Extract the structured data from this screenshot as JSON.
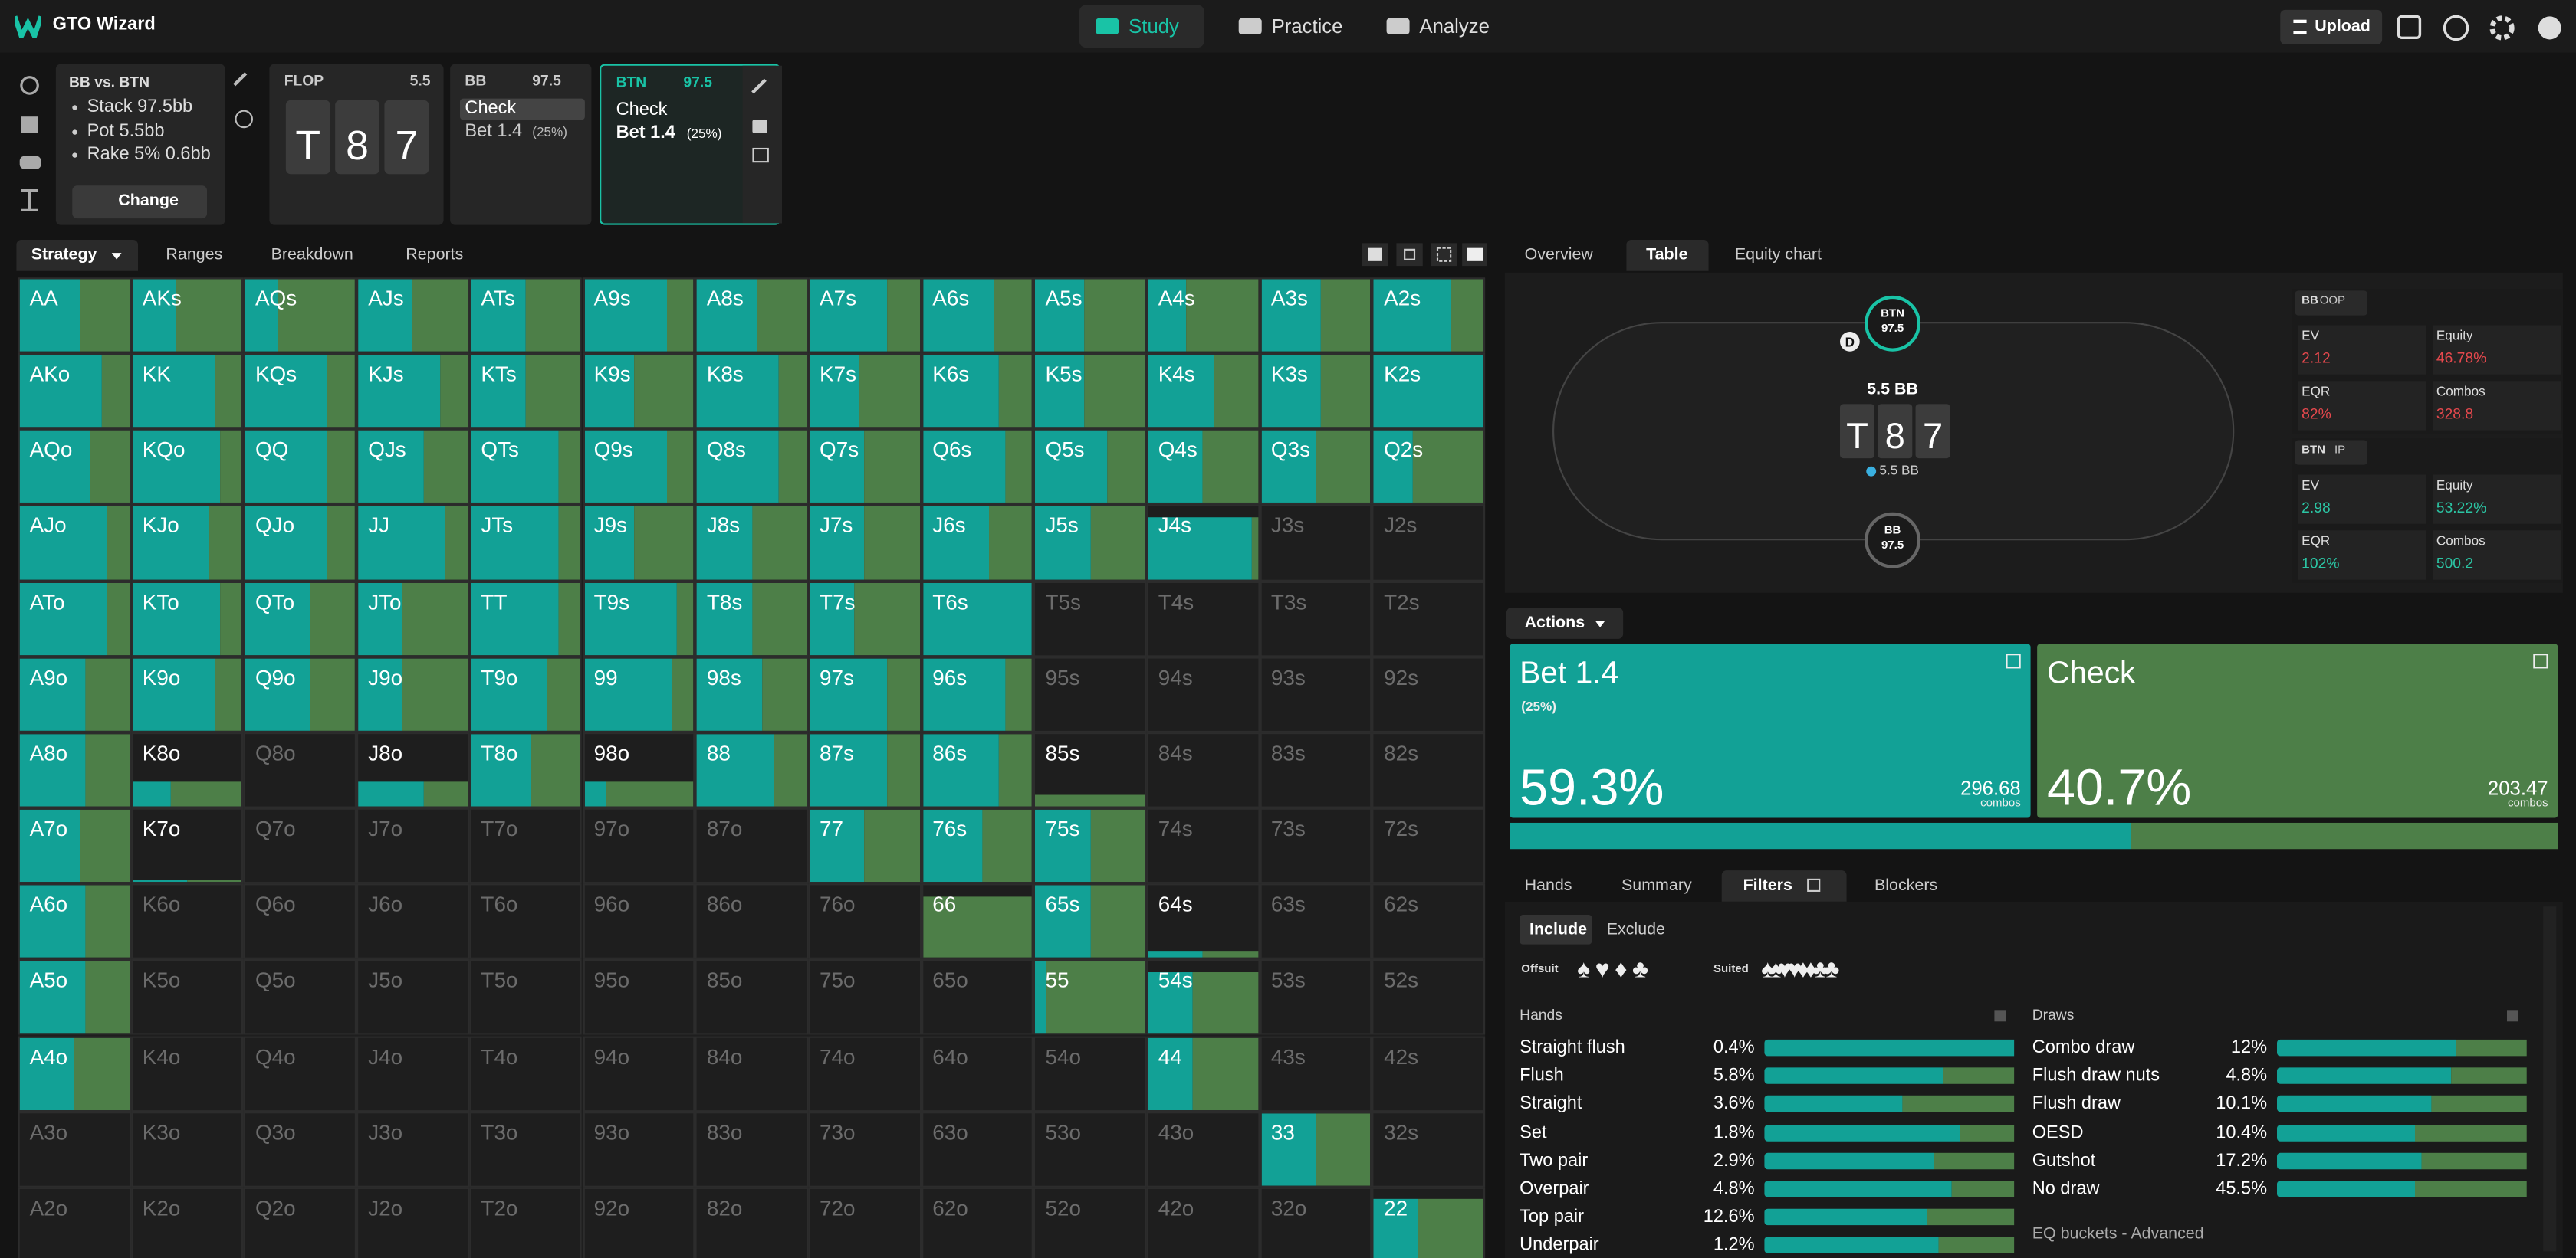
{
  "nav": {
    "brand": "GTO Wizard",
    "tabs": [
      "Study",
      "Practice",
      "Analyze"
    ],
    "upload": "Upload"
  },
  "spot": {
    "matchup": "BB vs. BTN",
    "lines": [
      "Stack 97.5bb",
      "Pot 5.5bb",
      "Rake 5% 0.6bb"
    ],
    "change": "Change"
  },
  "flop": {
    "label": "FLOP",
    "pot": "5.5",
    "cards": [
      "T",
      "8",
      "7"
    ]
  },
  "bb_node": {
    "player": "BB",
    "stack": "97.5",
    "actions": [
      "Check",
      "Bet 1.4"
    ],
    "bet_size": "(25%)"
  },
  "btn_node": {
    "player": "BTN",
    "stack": "97.5",
    "actions": [
      "Check",
      "Bet 1.4"
    ],
    "bet_size": "(25%)"
  },
  "left_tabs": [
    "Strategy",
    "Ranges",
    "Breakdown",
    "Reports"
  ],
  "grid": {
    "labels": [
      [
        "AA",
        "AKs",
        "AQs",
        "AJs",
        "ATs",
        "A9s",
        "A8s",
        "A7s",
        "A6s",
        "A5s",
        "A4s",
        "A3s",
        "A2s"
      ],
      [
        "AKo",
        "KK",
        "KQs",
        "KJs",
        "KTs",
        "K9s",
        "K8s",
        "K7s",
        "K6s",
        "K5s",
        "K4s",
        "K3s",
        "K2s"
      ],
      [
        "AQo",
        "KQo",
        "QQ",
        "QJs",
        "QTs",
        "Q9s",
        "Q8s",
        "Q7s",
        "Q6s",
        "Q5s",
        "Q4s",
        "Q3s",
        "Q2s"
      ],
      [
        "AJo",
        "KJo",
        "QJo",
        "JJ",
        "JTs",
        "J9s",
        "J8s",
        "J7s",
        "J6s",
        "J5s",
        "J4s",
        "J3s",
        "J2s"
      ],
      [
        "ATo",
        "KTo",
        "QTo",
        "JTo",
        "TT",
        "T9s",
        "T8s",
        "T7s",
        "T6s",
        "T5s",
        "T4s",
        "T3s",
        "T2s"
      ],
      [
        "A9o",
        "K9o",
        "Q9o",
        "J9o",
        "T9o",
        "99",
        "98s",
        "97s",
        "96s",
        "95s",
        "94s",
        "93s",
        "92s"
      ],
      [
        "A8o",
        "K8o",
        "Q8o",
        "J8o",
        "T8o",
        "98o",
        "88",
        "87s",
        "86s",
        "85s",
        "84s",
        "83s",
        "82s"
      ],
      [
        "A7o",
        "K7o",
        "Q7o",
        "J7o",
        "T7o",
        "97o",
        "87o",
        "77",
        "76s",
        "75s",
        "74s",
        "73s",
        "72s"
      ],
      [
        "A6o",
        "K6o",
        "Q6o",
        "J6o",
        "T6o",
        "96o",
        "86o",
        "76o",
        "66",
        "65s",
        "64s",
        "63s",
        "62s"
      ],
      [
        "A5o",
        "K5o",
        "Q5o",
        "J5o",
        "T5o",
        "95o",
        "85o",
        "75o",
        "65o",
        "55",
        "54s",
        "53s",
        "52s"
      ],
      [
        "A4o",
        "K4o",
        "Q4o",
        "J4o",
        "T4o",
        "94o",
        "84o",
        "74o",
        "64o",
        "54o",
        "44",
        "43s",
        "42s"
      ],
      [
        "A3o",
        "K3o",
        "Q3o",
        "J3o",
        "T3o",
        "93o",
        "83o",
        "73o",
        "63o",
        "53o",
        "43o",
        "33",
        "32s"
      ],
      [
        "A2o",
        "K2o",
        "Q2o",
        "J2o",
        "T2o",
        "92o",
        "82o",
        "72o",
        "62o",
        "52o",
        "42o",
        "32o",
        "22"
      ]
    ],
    "bet": [
      [
        55,
        40,
        30,
        50,
        50,
        75,
        55,
        70,
        65,
        45,
        35,
        55,
        70
      ],
      [
        75,
        75,
        75,
        75,
        50,
        45,
        75,
        45,
        70,
        45,
        60,
        55,
        100
      ],
      [
        65,
        80,
        75,
        60,
        80,
        75,
        75,
        50,
        75,
        65,
        50,
        50,
        35
      ],
      [
        80,
        70,
        75,
        80,
        80,
        45,
        50,
        50,
        60,
        50,
        95,
        null,
        null
      ],
      [
        80,
        80,
        60,
        40,
        80,
        85,
        50,
        40,
        100,
        null,
        null,
        null,
        null
      ],
      [
        60,
        75,
        60,
        40,
        70,
        80,
        60,
        70,
        75,
        null,
        null,
        null,
        null
      ],
      [
        60,
        35,
        null,
        60,
        55,
        20,
        70,
        70,
        70,
        0,
        null,
        null,
        null
      ],
      [
        55,
        50,
        null,
        null,
        null,
        null,
        null,
        50,
        55,
        50,
        null,
        null,
        null
      ],
      [
        60,
        null,
        null,
        null,
        null,
        null,
        null,
        null,
        0,
        50,
        50,
        null,
        null
      ],
      [
        60,
        null,
        null,
        null,
        null,
        null,
        null,
        null,
        null,
        10,
        40,
        null,
        null
      ],
      [
        50,
        null,
        null,
        null,
        null,
        null,
        null,
        null,
        null,
        null,
        40,
        null,
        null
      ],
      [
        null,
        null,
        null,
        null,
        null,
        null,
        null,
        null,
        null,
        null,
        null,
        50,
        null
      ],
      [
        null,
        null,
        null,
        null,
        null,
        null,
        null,
        null,
        null,
        null,
        null,
        null,
        40
      ]
    ],
    "weight": [
      [
        100,
        100,
        100,
        100,
        100,
        100,
        100,
        100,
        100,
        100,
        100,
        100,
        100
      ],
      [
        100,
        100,
        100,
        100,
        100,
        100,
        100,
        100,
        100,
        100,
        100,
        100,
        100
      ],
      [
        100,
        100,
        100,
        100,
        100,
        100,
        100,
        100,
        100,
        100,
        100,
        100,
        100
      ],
      [
        100,
        100,
        100,
        100,
        100,
        100,
        100,
        100,
        100,
        100,
        85,
        null,
        null
      ],
      [
        100,
        100,
        100,
        100,
        100,
        100,
        100,
        100,
        100,
        null,
        null,
        null,
        null
      ],
      [
        100,
        100,
        100,
        100,
        100,
        100,
        100,
        100,
        100,
        null,
        null,
        null,
        null
      ],
      [
        100,
        35,
        null,
        35,
        100,
        35,
        100,
        100,
        100,
        15,
        null,
        null,
        null
      ],
      [
        100,
        2,
        null,
        null,
        null,
        null,
        null,
        100,
        100,
        100,
        null,
        null,
        null
      ],
      [
        100,
        null,
        null,
        null,
        null,
        null,
        null,
        null,
        85,
        100,
        10,
        null,
        null
      ],
      [
        100,
        null,
        null,
        null,
        null,
        null,
        null,
        null,
        null,
        100,
        85,
        null,
        null
      ],
      [
        100,
        null,
        null,
        null,
        null,
        null,
        null,
        null,
        null,
        null,
        100,
        null,
        null
      ],
      [
        null,
        null,
        null,
        null,
        null,
        null,
        null,
        null,
        null,
        null,
        null,
        100,
        null
      ],
      [
        null,
        null,
        null,
        null,
        null,
        null,
        null,
        null,
        null,
        null,
        null,
        null,
        85
      ]
    ]
  },
  "right_tabs": [
    "Overview",
    "Table",
    "Equity chart"
  ],
  "table": {
    "btn_seat": {
      "name": "BTN",
      "stack": "97.5"
    },
    "dealer": "D",
    "pot": "5.5 BB",
    "board": [
      "T",
      "8",
      "7"
    ],
    "chips": "5.5 BB",
    "bb_seat": {
      "name": "BB",
      "stack": "97.5"
    }
  },
  "stats": {
    "labels": [
      "EV",
      "Equity",
      "EQR",
      "Combos"
    ],
    "players": [
      {
        "player": "BB",
        "pos": "OOP",
        "values": [
          "2.12",
          "46.78%",
          "82%",
          "328.8"
        ]
      },
      {
        "player": "BTN",
        "pos": "IP",
        "values": [
          "2.98",
          "53.22%",
          "102%",
          "500.2"
        ]
      }
    ]
  },
  "actions": {
    "title": "Actions",
    "cards": [
      {
        "name": "Bet 1.4",
        "size": "(25%)",
        "freq": {
          "value": 59.3,
          "label": "59.3%"
        },
        "combos": "296.68",
        "unit": "combos",
        "color": "#12a196"
      },
      {
        "name": "Check",
        "freq": {
          "value": 40.7,
          "label": "40.7%"
        },
        "combos": "203.47",
        "unit": "combos",
        "color": "#4d7f48"
      }
    ]
  },
  "bottom_tabs": [
    "Hands",
    "Summary",
    "Filters",
    "Blockers"
  ],
  "filters": {
    "include": "Include",
    "exclude": "Exclude",
    "offsuit": "Offsuit",
    "offsuit_suits": "♠♥♦♣",
    "suited": "Suited",
    "suited_suits": "♠♠♥♥♦♦♣♣",
    "hands_title": "Hands",
    "hands": [
      {
        "name": "Straight flush",
        "pct": "0.4%",
        "bet": 100
      },
      {
        "name": "Flush",
        "pct": "5.8%",
        "bet": 72
      },
      {
        "name": "Straight",
        "pct": "3.6%",
        "bet": 55
      },
      {
        "name": "Set",
        "pct": "1.8%",
        "bet": 78
      },
      {
        "name": "Two pair",
        "pct": "2.9%",
        "bet": 68
      },
      {
        "name": "Overpair",
        "pct": "4.8%",
        "bet": 75
      },
      {
        "name": "Top pair",
        "pct": "12.6%",
        "bet": 65
      },
      {
        "name": "Underpair",
        "pct": "1.2%",
        "bet": 70
      }
    ],
    "draws_title": "Draws",
    "draws": [
      {
        "name": "Combo draw",
        "pct": "12%",
        "bet": 72
      },
      {
        "name": "Flush draw nuts",
        "pct": "4.8%",
        "bet": 70
      },
      {
        "name": "Flush draw",
        "pct": "10.1%",
        "bet": 62
      },
      {
        "name": "OESD",
        "pct": "10.4%",
        "bet": 55
      },
      {
        "name": "Gutshot",
        "pct": "17.2%",
        "bet": 58
      },
      {
        "name": "No draw",
        "pct": "45.5%",
        "bet": 55
      }
    ],
    "eq_buckets": "EQ buckets - Advanced"
  }
}
